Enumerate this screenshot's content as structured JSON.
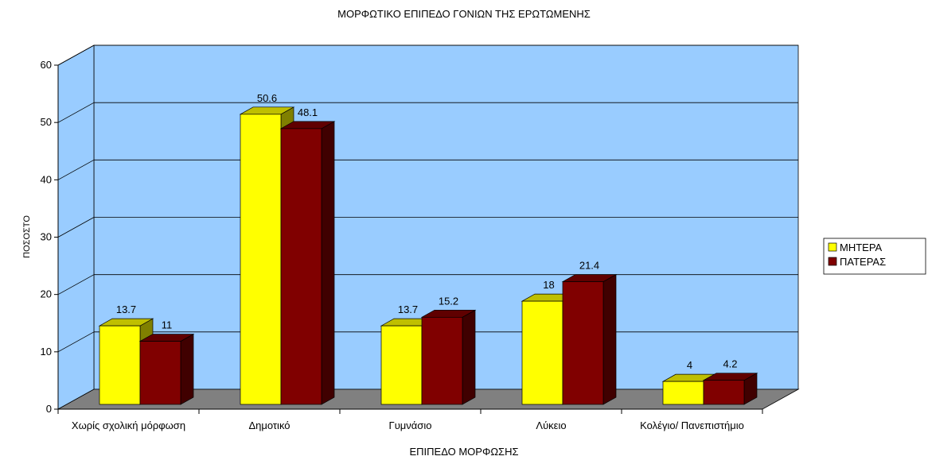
{
  "chart_data": {
    "type": "bar3d",
    "title": "ΜΟΡΦΩΤΙΚΟ ΕΠΙΠΕΔΟ ΓΟΝΙΩΝ ΤΗΣ ΕΡΩΤΩΜΕΝΗΣ",
    "x_label": "ΕΠΙΠΕΔΟ ΜΟΡΦΩΣΗΣ",
    "y_label": "ΠΟΣΟΣΤΟ",
    "categories": [
      "Χωρίς σχολική μόρφωση",
      "Δημοτικό",
      "Γυμνάσιο",
      "Λύκειο",
      "Κολέγιο/ Πανεπιστήμιο"
    ],
    "series": [
      {
        "name": "ΜΗΤΕΡΑ",
        "color": "#ffff00",
        "values": [
          13.7,
          50.6,
          13.7,
          18,
          4
        ]
      },
      {
        "name": "ΠΑΤΕΡΑΣ",
        "color": "#800000",
        "values": [
          11,
          48.1,
          15.2,
          21.4,
          4.2
        ]
      }
    ],
    "ylim": [
      0,
      60
    ],
    "yticks": [
      0,
      10,
      20,
      30,
      40,
      50,
      60
    ],
    "grid": true,
    "legend": "right"
  }
}
